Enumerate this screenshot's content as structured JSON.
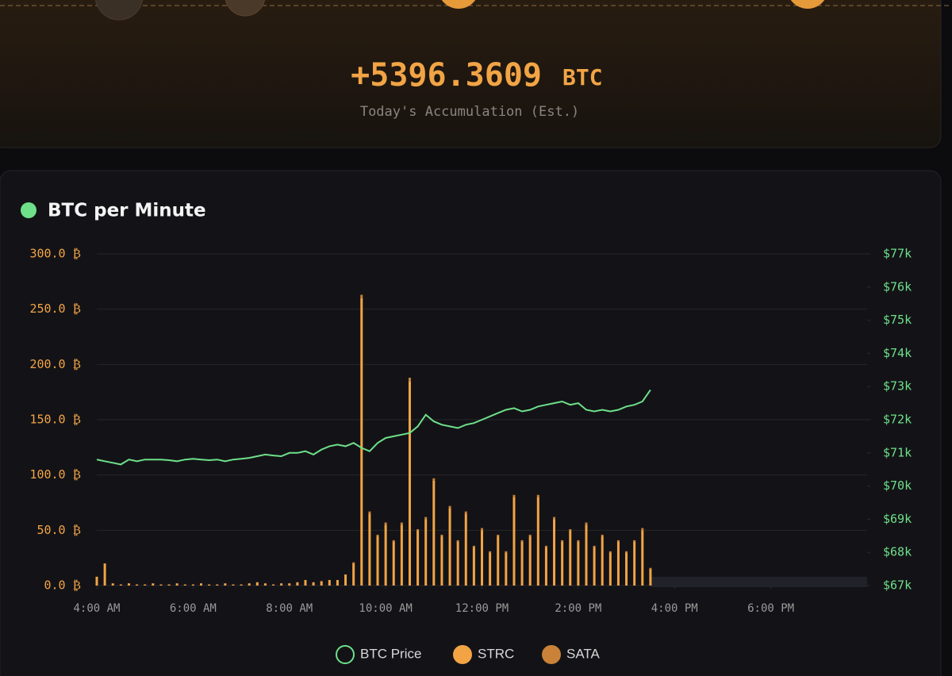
{
  "summary": {
    "value": "+5396.3609",
    "unit": "BTC",
    "label": "Today's Accumulation (Est.)"
  },
  "chart_data": {
    "type": "bar",
    "title": "BTC per Minute",
    "x": [
      240,
      250,
      260,
      270,
      280,
      290,
      300,
      310,
      320,
      330,
      340,
      350,
      360,
      370,
      380,
      390,
      400,
      410,
      420,
      430,
      440,
      450,
      460,
      470,
      480,
      490,
      500,
      510,
      520,
      530,
      540,
      550,
      560,
      570,
      580,
      590,
      600,
      610,
      620,
      630,
      640,
      650,
      660,
      670,
      680,
      690,
      700,
      710,
      720,
      730,
      740,
      750,
      760,
      770,
      780,
      790,
      800,
      810,
      820,
      830,
      840,
      850,
      860,
      870,
      880,
      890,
      900,
      910,
      920,
      930
    ],
    "xlim": [
      240,
      1200
    ],
    "xticks": [
      {
        "value": 240,
        "label": "4:00 AM"
      },
      {
        "value": 360,
        "label": "6:00 AM"
      },
      {
        "value": 480,
        "label": "8:00 AM"
      },
      {
        "value": 600,
        "label": "10:00 AM"
      },
      {
        "value": 720,
        "label": "12:00 PM"
      },
      {
        "value": 840,
        "label": "2:00 PM"
      },
      {
        "value": 960,
        "label": "4:00 PM"
      },
      {
        "value": 1080,
        "label": "6:00 PM"
      }
    ],
    "ylim": [
      0,
      300
    ],
    "yticks": [
      {
        "value": 0,
        "label": "0.0 ₿"
      },
      {
        "value": 50,
        "label": "50.0 ₿"
      },
      {
        "value": 100,
        "label": "100.0 ₿"
      },
      {
        "value": 150,
        "label": "150.0 ₿"
      },
      {
        "value": 200,
        "label": "200.0 ₿"
      },
      {
        "value": 250,
        "label": "250.0 ₿"
      },
      {
        "value": 300,
        "label": "300.0 ₿"
      }
    ],
    "y2lim": [
      67000,
      77000
    ],
    "y2ticks": [
      {
        "value": 67000,
        "label": "$67k"
      },
      {
        "value": 68000,
        "label": "$68k"
      },
      {
        "value": 69000,
        "label": "$69k"
      },
      {
        "value": 70000,
        "label": "$70k"
      },
      {
        "value": 71000,
        "label": "$71k"
      },
      {
        "value": 72000,
        "label": "$72k"
      },
      {
        "value": 73000,
        "label": "$73k"
      },
      {
        "value": 74000,
        "label": "$74k"
      },
      {
        "value": 75000,
        "label": "$75k"
      },
      {
        "value": 76000,
        "label": "$76k"
      },
      {
        "value": 77000,
        "label": "$77k"
      }
    ],
    "grid": true,
    "legend": "bottom",
    "series": [
      {
        "name": "BTC Price",
        "type": "line",
        "axis": "y2",
        "color": "#6ee08a",
        "values": [
          70800,
          70750,
          70700,
          70650,
          70800,
          70750,
          70800,
          70800,
          70800,
          70780,
          70750,
          70800,
          70820,
          70800,
          70780,
          70800,
          70750,
          70800,
          70820,
          70850,
          70900,
          70950,
          70920,
          70900,
          71000,
          71000,
          71050,
          70950,
          71100,
          71200,
          71250,
          71200,
          71300,
          71150,
          71050,
          71300,
          71450,
          71500,
          71550,
          71600,
          71800,
          72150,
          71950,
          71850,
          71800,
          71750,
          71850,
          71900,
          72000,
          72100,
          72200,
          72300,
          72350,
          72250,
          72300,
          72400,
          72450,
          72500,
          72550,
          72450,
          72500,
          72300,
          72250,
          72300,
          72250,
          72300,
          72400,
          72450,
          72550,
          72900
        ]
      },
      {
        "name": "STRC",
        "color": "#f2a445",
        "values": [
          8,
          20,
          2,
          1,
          2,
          1,
          1,
          2,
          1,
          1,
          2,
          1,
          1,
          2,
          1,
          1,
          2,
          1,
          1,
          2,
          3,
          2,
          1,
          2,
          2,
          3,
          5,
          3,
          4,
          5,
          5,
          10,
          20,
          260,
          65,
          45,
          55,
          40,
          55,
          185,
          50,
          60,
          95,
          45,
          70,
          40,
          65,
          35,
          50,
          30,
          45,
          30,
          80,
          40,
          45,
          80,
          35,
          60,
          40,
          50,
          40,
          55,
          35,
          45,
          30,
          40,
          30,
          40,
          50,
          15
        ]
      },
      {
        "name": "SATA",
        "color": "#c98238",
        "values": [
          0,
          0,
          0,
          0,
          0,
          0,
          0,
          0,
          0,
          0,
          0,
          0,
          0,
          0,
          0,
          0,
          0,
          0,
          0,
          0,
          0,
          0,
          0,
          0,
          0,
          0,
          0,
          0,
          0,
          0,
          0,
          0,
          1,
          3,
          2,
          1,
          2,
          1,
          2,
          3,
          1,
          2,
          2,
          1,
          2,
          1,
          2,
          1,
          2,
          1,
          1,
          1,
          2,
          1,
          1,
          2,
          1,
          2,
          1,
          1,
          1,
          2,
          1,
          1,
          1,
          1,
          1,
          1,
          2,
          1
        ]
      }
    ]
  }
}
